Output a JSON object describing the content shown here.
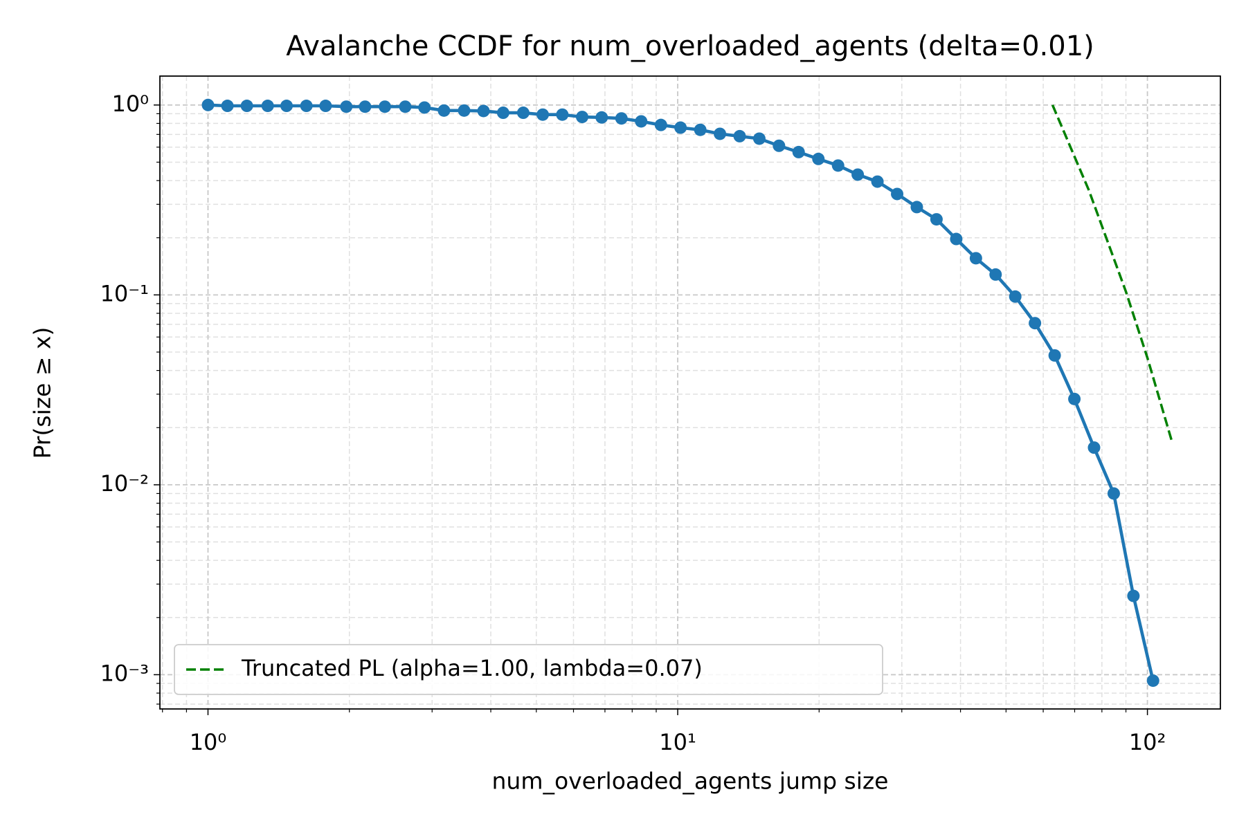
{
  "chart_data": {
    "type": "line",
    "title": "Avalanche CCDF for num_overloaded_agents (delta=0.01)",
    "x_label": "num_overloaded_agents jump size",
    "y_label": "Pr(size ≥ x)",
    "xscale": "log",
    "yscale": "log",
    "grid": true,
    "legend": "lower left",
    "xlim": [
      0.79,
      143
    ],
    "ylim": [
      0.00066,
      1.42
    ],
    "xticks": [
      {
        "value": 1,
        "label": "10⁰"
      },
      {
        "value": 10,
        "label": "10¹"
      },
      {
        "value": 100,
        "label": "10²"
      }
    ],
    "yticks": [
      {
        "value": 0.001,
        "label": "10⁻³"
      },
      {
        "value": 0.01,
        "label": "10⁻²"
      },
      {
        "value": 0.1,
        "label": "10⁻¹"
      },
      {
        "value": 1,
        "label": "10⁰"
      }
    ],
    "xminorticks": [
      0.8,
      0.9,
      2,
      3,
      4,
      5,
      6,
      7,
      8,
      9,
      20,
      30,
      40,
      50,
      60,
      70,
      80,
      90
    ],
    "yminorticks": [
      0.0007,
      0.0008,
      0.0009,
      0.002,
      0.003,
      0.004,
      0.005,
      0.006,
      0.007,
      0.008,
      0.009,
      0.02,
      0.03,
      0.04,
      0.05,
      0.06,
      0.07,
      0.08,
      0.09,
      0.2,
      0.3,
      0.4,
      0.5,
      0.6,
      0.7,
      0.8,
      0.9
    ],
    "series": [
      {
        "color": "#1f77b4",
        "linestyle": "solid",
        "marker": "circle",
        "x": [
          1,
          1.1,
          1.21,
          1.34,
          1.47,
          1.62,
          1.78,
          1.97,
          2.16,
          2.38,
          2.63,
          2.89,
          3.18,
          3.51,
          3.86,
          4.25,
          4.69,
          5.16,
          5.68,
          6.26,
          6.89,
          7.59,
          8.36,
          9.21,
          10.14,
          11.17,
          12.3,
          13.55,
          14.92,
          16.43,
          18.09,
          19.93,
          21.95,
          24.17,
          26.62,
          29.32,
          32.29,
          35.56,
          39.17,
          43.14,
          47.51,
          52.32,
          57.62,
          63.47,
          69.9,
          76.98,
          84.78,
          93.37,
          102.8
        ],
        "values": [
          1.0,
          0.99,
          0.99,
          0.99,
          0.99,
          0.99,
          0.99,
          0.98,
          0.98,
          0.98,
          0.98,
          0.97,
          0.935,
          0.935,
          0.93,
          0.91,
          0.91,
          0.89,
          0.89,
          0.865,
          0.86,
          0.85,
          0.82,
          0.785,
          0.76,
          0.74,
          0.705,
          0.685,
          0.665,
          0.61,
          0.565,
          0.52,
          0.48,
          0.43,
          0.395,
          0.34,
          0.29,
          0.25,
          0.197,
          0.156,
          0.128,
          0.098,
          0.071,
          0.048,
          0.0283,
          0.0157,
          0.009,
          0.0026,
          0.00093
        ]
      },
      {
        "name": "Truncated PL (alpha=1.00, lambda=0.07)",
        "color": "#008000",
        "linestyle": "dashed",
        "marker": "none",
        "x": [
          62.8,
          75,
          90,
          100,
          113
        ],
        "values": [
          1.0,
          0.357,
          0.104,
          0.0466,
          0.0166
        ]
      }
    ]
  }
}
